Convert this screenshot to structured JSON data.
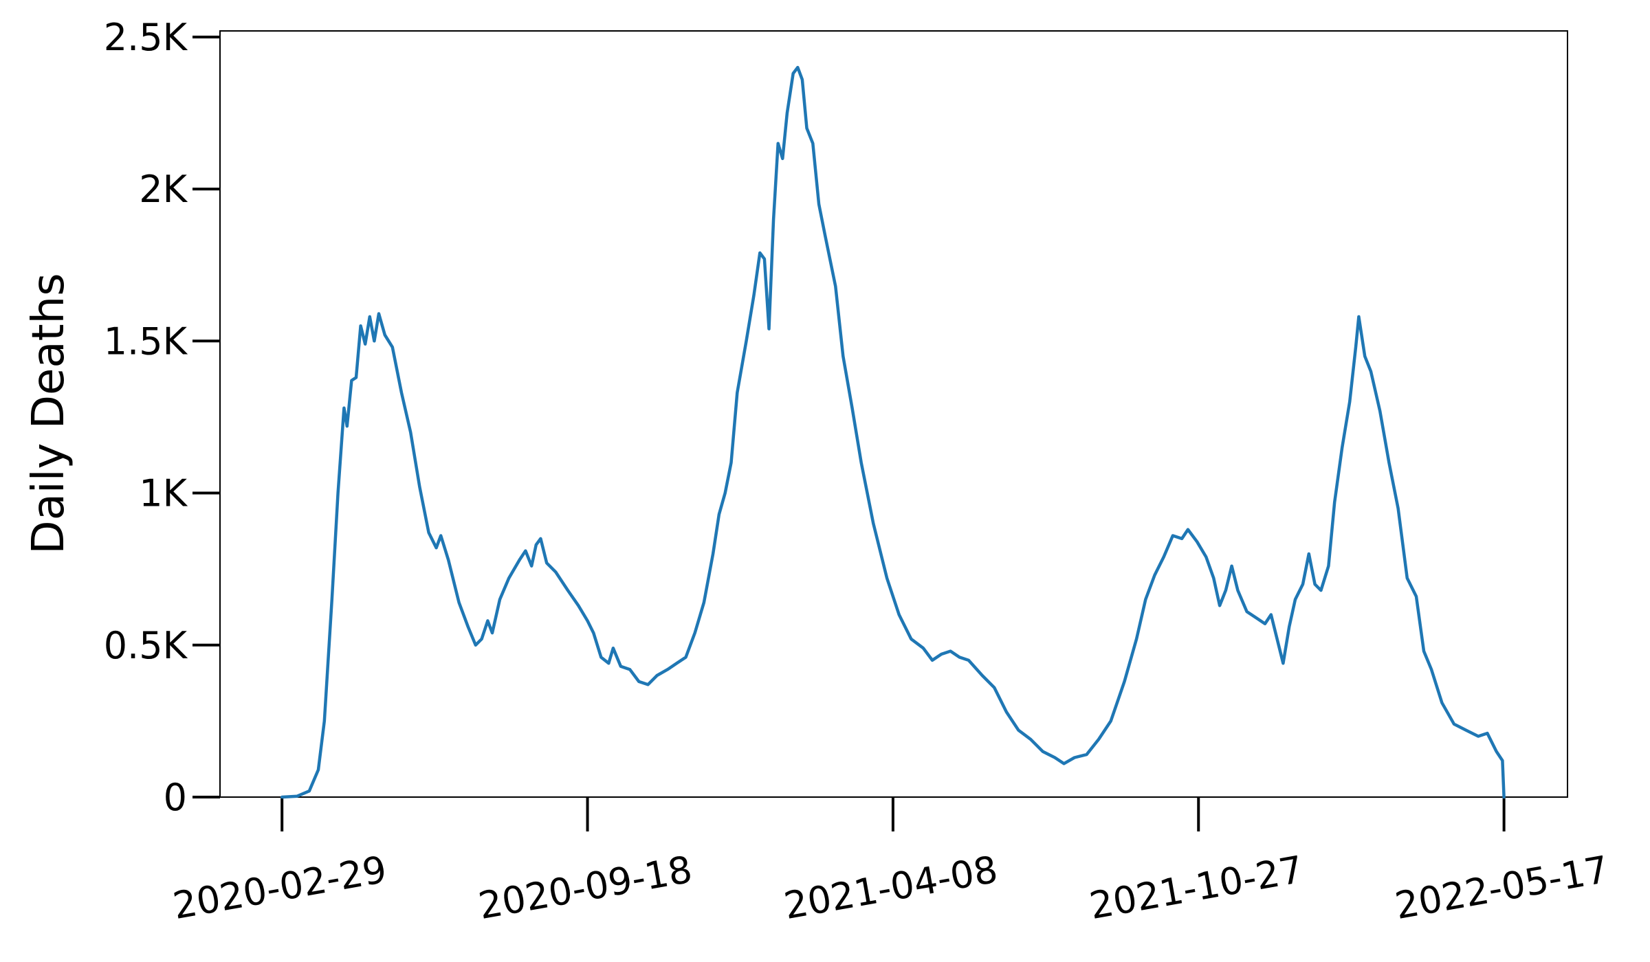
{
  "chart_data": {
    "type": "line",
    "title": "",
    "xlabel": "",
    "ylabel": "Daily Deaths",
    "x_tick_labels": [
      "2020-02-29",
      "2020-09-18",
      "2021-04-08",
      "2021-10-27",
      "2022-05-17"
    ],
    "y_tick_labels": [
      "0",
      "0.5K",
      "1K",
      "1.5K",
      "2K",
      "2.5K"
    ],
    "y_ticks": [
      0,
      500,
      1000,
      1500,
      2000,
      2500
    ],
    "ylim": [
      0,
      2520
    ],
    "xlim": [
      "2020-01-19",
      "2022-06-28"
    ],
    "grid": false,
    "series": [
      {
        "color": "#1f77b4",
        "points": [
          [
            "2020-02-29",
            0
          ],
          [
            "2020-03-10",
            3
          ],
          [
            "2020-03-18",
            20
          ],
          [
            "2020-03-24",
            90
          ],
          [
            "2020-03-28",
            250
          ],
          [
            "2020-04-02",
            650
          ],
          [
            "2020-04-06",
            1000
          ],
          [
            "2020-04-10",
            1280
          ],
          [
            "2020-04-12",
            1220
          ],
          [
            "2020-04-15",
            1370
          ],
          [
            "2020-04-18",
            1380
          ],
          [
            "2020-04-21",
            1550
          ],
          [
            "2020-04-24",
            1490
          ],
          [
            "2020-04-27",
            1580
          ],
          [
            "2020-04-30",
            1500
          ],
          [
            "2020-05-03",
            1590
          ],
          [
            "2020-05-07",
            1520
          ],
          [
            "2020-05-12",
            1480
          ],
          [
            "2020-05-18",
            1330
          ],
          [
            "2020-05-24",
            1200
          ],
          [
            "2020-05-30",
            1020
          ],
          [
            "2020-06-05",
            870
          ],
          [
            "2020-06-10",
            820
          ],
          [
            "2020-06-13",
            860
          ],
          [
            "2020-06-18",
            780
          ],
          [
            "2020-06-25",
            640
          ],
          [
            "2020-07-01",
            560
          ],
          [
            "2020-07-06",
            500
          ],
          [
            "2020-07-10",
            520
          ],
          [
            "2020-07-14",
            580
          ],
          [
            "2020-07-17",
            540
          ],
          [
            "2020-07-22",
            650
          ],
          [
            "2020-07-28",
            720
          ],
          [
            "2020-08-04",
            780
          ],
          [
            "2020-08-08",
            810
          ],
          [
            "2020-08-12",
            760
          ],
          [
            "2020-08-15",
            830
          ],
          [
            "2020-08-18",
            850
          ],
          [
            "2020-08-22",
            770
          ],
          [
            "2020-08-28",
            740
          ],
          [
            "2020-09-05",
            680
          ],
          [
            "2020-09-12",
            630
          ],
          [
            "2020-09-18",
            580
          ],
          [
            "2020-09-22",
            540
          ],
          [
            "2020-09-27",
            460
          ],
          [
            "2020-10-02",
            440
          ],
          [
            "2020-10-05",
            490
          ],
          [
            "2020-10-10",
            430
          ],
          [
            "2020-10-16",
            420
          ],
          [
            "2020-10-22",
            380
          ],
          [
            "2020-10-28",
            370
          ],
          [
            "2020-11-03",
            400
          ],
          [
            "2020-11-10",
            420
          ],
          [
            "2020-11-16",
            440
          ],
          [
            "2020-11-22",
            460
          ],
          [
            "2020-11-28",
            540
          ],
          [
            "2020-12-04",
            640
          ],
          [
            "2020-12-10",
            800
          ],
          [
            "2020-12-14",
            930
          ],
          [
            "2020-12-18",
            1000
          ],
          [
            "2020-12-22",
            1100
          ],
          [
            "2020-12-26",
            1330
          ],
          [
            "2021-01-01",
            1500
          ],
          [
            "2021-01-06",
            1650
          ],
          [
            "2021-01-10",
            1790
          ],
          [
            "2021-01-13",
            1770
          ],
          [
            "2021-01-16",
            1540
          ],
          [
            "2021-01-19",
            1900
          ],
          [
            "2021-01-22",
            2150
          ],
          [
            "2021-01-25",
            2100
          ],
          [
            "2021-01-28",
            2250
          ],
          [
            "2021-02-01",
            2380
          ],
          [
            "2021-02-04",
            2400
          ],
          [
            "2021-02-07",
            2360
          ],
          [
            "2021-02-10",
            2200
          ],
          [
            "2021-02-14",
            2150
          ],
          [
            "2021-02-18",
            1950
          ],
          [
            "2021-02-22",
            1850
          ],
          [
            "2021-03-01",
            1680
          ],
          [
            "2021-03-06",
            1450
          ],
          [
            "2021-03-12",
            1280
          ],
          [
            "2021-03-18",
            1100
          ],
          [
            "2021-03-26",
            900
          ],
          [
            "2021-04-04",
            720
          ],
          [
            "2021-04-12",
            600
          ],
          [
            "2021-04-20",
            520
          ],
          [
            "2021-04-28",
            490
          ],
          [
            "2021-05-04",
            450
          ],
          [
            "2021-05-10",
            470
          ],
          [
            "2021-05-16",
            480
          ],
          [
            "2021-05-22",
            460
          ],
          [
            "2021-05-28",
            450
          ],
          [
            "2021-06-06",
            400
          ],
          [
            "2021-06-14",
            360
          ],
          [
            "2021-06-22",
            280
          ],
          [
            "2021-06-30",
            220
          ],
          [
            "2021-07-08",
            190
          ],
          [
            "2021-07-16",
            150
          ],
          [
            "2021-07-24",
            130
          ],
          [
            "2021-07-30",
            110
          ],
          [
            "2021-08-06",
            130
          ],
          [
            "2021-08-14",
            140
          ],
          [
            "2021-08-22",
            190
          ],
          [
            "2021-08-30",
            250
          ],
          [
            "2021-09-08",
            380
          ],
          [
            "2021-09-16",
            520
          ],
          [
            "2021-09-22",
            650
          ],
          [
            "2021-09-28",
            730
          ],
          [
            "2021-10-04",
            790
          ],
          [
            "2021-10-10",
            860
          ],
          [
            "2021-10-16",
            850
          ],
          [
            "2021-10-20",
            880
          ],
          [
            "2021-10-26",
            840
          ],
          [
            "2021-11-01",
            790
          ],
          [
            "2021-11-06",
            720
          ],
          [
            "2021-11-10",
            630
          ],
          [
            "2021-11-14",
            680
          ],
          [
            "2021-11-18",
            760
          ],
          [
            "2021-11-22",
            680
          ],
          [
            "2021-11-28",
            610
          ],
          [
            "2021-12-04",
            590
          ],
          [
            "2021-12-10",
            570
          ],
          [
            "2021-12-14",
            600
          ],
          [
            "2021-12-18",
            520
          ],
          [
            "2021-12-22",
            440
          ],
          [
            "2021-12-26",
            560
          ],
          [
            "2021-12-30",
            650
          ],
          [
            "2022-01-04",
            700
          ],
          [
            "2022-01-08",
            800
          ],
          [
            "2022-01-12",
            700
          ],
          [
            "2022-01-16",
            680
          ],
          [
            "2022-01-21",
            760
          ],
          [
            "2022-01-25",
            970
          ],
          [
            "2022-01-30",
            1150
          ],
          [
            "2022-02-04",
            1300
          ],
          [
            "2022-02-08",
            1480
          ],
          [
            "2022-02-10",
            1580
          ],
          [
            "2022-02-14",
            1450
          ],
          [
            "2022-02-18",
            1400
          ],
          [
            "2022-02-24",
            1270
          ],
          [
            "2022-03-02",
            1100
          ],
          [
            "2022-03-08",
            950
          ],
          [
            "2022-03-14",
            720
          ],
          [
            "2022-03-20",
            660
          ],
          [
            "2022-03-25",
            480
          ],
          [
            "2022-03-30",
            420
          ],
          [
            "2022-04-06",
            310
          ],
          [
            "2022-04-14",
            240
          ],
          [
            "2022-04-22",
            220
          ],
          [
            "2022-04-30",
            200
          ],
          [
            "2022-05-06",
            210
          ],
          [
            "2022-05-12",
            150
          ],
          [
            "2022-05-16",
            120
          ],
          [
            "2022-05-17",
            0
          ]
        ]
      }
    ]
  }
}
